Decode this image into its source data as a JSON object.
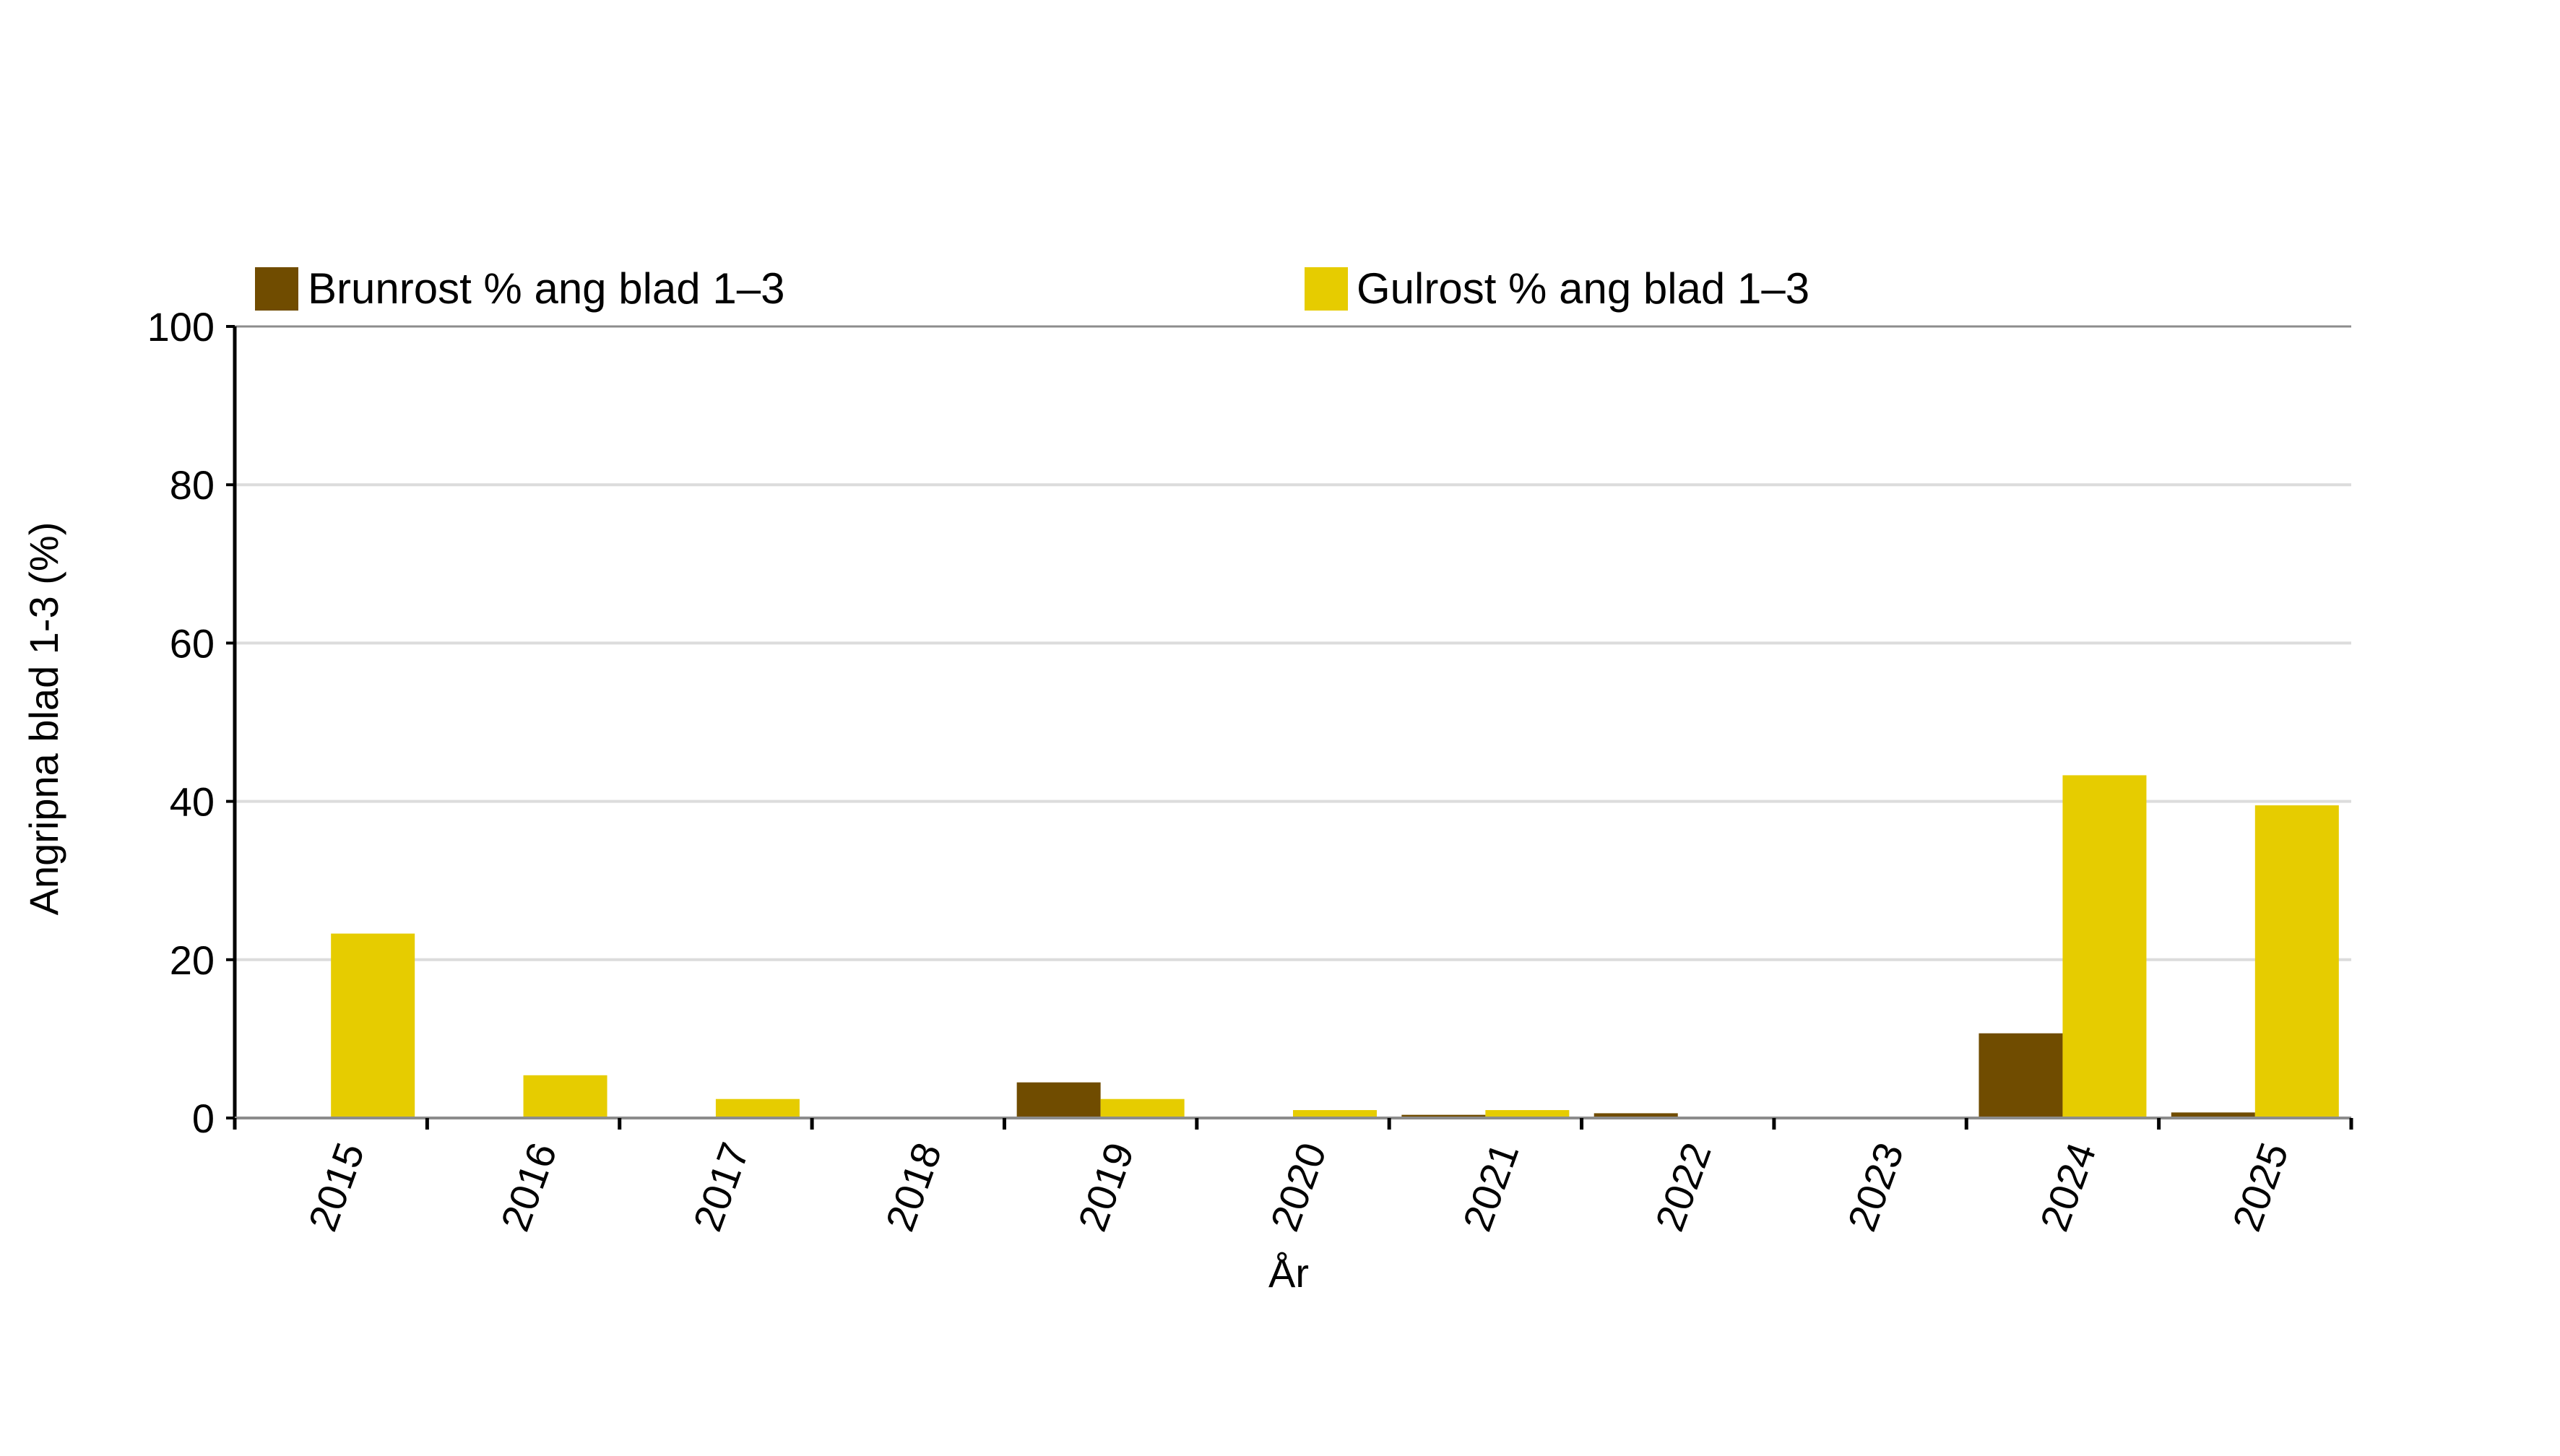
{
  "chart_data": {
    "type": "bar",
    "title": "",
    "xlabel": "År",
    "ylabel": "Angripna blad 1-3 (%)",
    "ylim": [
      0,
      100
    ],
    "yticks": [
      0,
      20,
      40,
      60,
      80,
      100
    ],
    "grid": true,
    "legend_position": "top",
    "categories": [
      "2015",
      "2016",
      "2017",
      "2018",
      "2019",
      "2020",
      "2021",
      "2022",
      "2023",
      "2024",
      "2025"
    ],
    "series": [
      {
        "name": "Brunrost % ang blad 1–3",
        "color": "#704c00",
        "values": [
          0,
          0,
          0,
          0,
          4.5,
          0,
          0.4,
          0.6,
          0,
          10.7,
          0.7
        ]
      },
      {
        "name": "Gulrost % ang blad 1–3",
        "color": "#e6cc00",
        "values": [
          23.3,
          5.4,
          2.4,
          0,
          2.4,
          1,
          1,
          0,
          0,
          43.3,
          39.5
        ]
      }
    ]
  }
}
